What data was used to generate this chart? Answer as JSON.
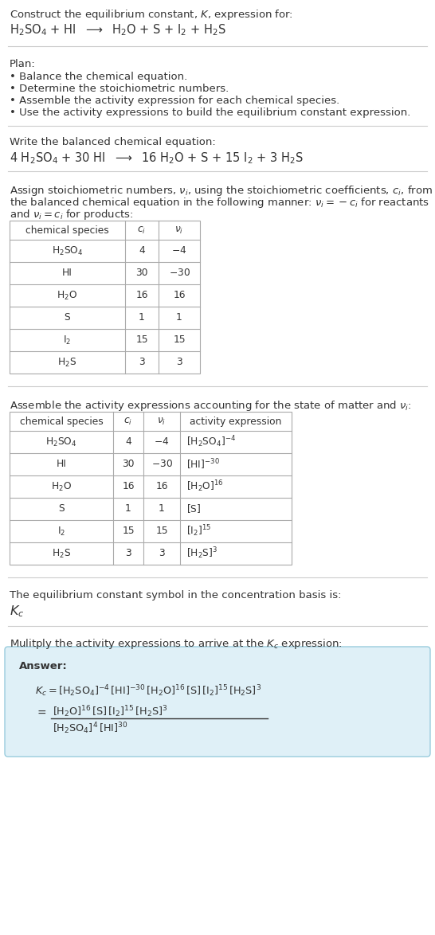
{
  "bg_color": "#ffffff",
  "text_color": "#333333",
  "gray_text": "#555555",
  "answer_bg": "#dff0f7",
  "answer_border": "#99ccdd",
  "table_border": "#aaaaaa",
  "title_line1": "Construct the equilibrium constant, $K$, expression for:",
  "title_line2": "$\\mathrm{H_2SO_4}$ + HI  $\\longrightarrow$  $\\mathrm{H_2O}$ + S + $\\mathrm{I_2}$ + $\\mathrm{H_2S}$",
  "plan_header": "Plan:",
  "plan_items": [
    "Balance the chemical equation.",
    "Determine the stoichiometric numbers.",
    "Assemble the activity expression for each chemical species.",
    "Use the activity expressions to build the equilibrium constant expression."
  ],
  "balanced_header": "Write the balanced chemical equation:",
  "balanced_eq": "4 $\\mathrm{H_2SO_4}$ + 30 HI  $\\longrightarrow$  16 $\\mathrm{H_2O}$ + S + 15 $\\mathrm{I_2}$ + 3 $\\mathrm{H_2S}$",
  "stoich_text1": "Assign stoichiometric numbers, $\\nu_i$, using the stoichiometric coefficients, $c_i$, from",
  "stoich_text2": "the balanced chemical equation in the following manner: $\\nu_i = -c_i$ for reactants",
  "stoich_text3": "and $\\nu_i = c_i$ for products:",
  "table1_cols": [
    "chemical species",
    "$c_i$",
    "$\\nu_i$"
  ],
  "table1_data": [
    [
      "$\\mathrm{H_2SO_4}$",
      "4",
      "$-4$"
    ],
    [
      "HI",
      "30",
      "$-30$"
    ],
    [
      "$\\mathrm{H_2O}$",
      "16",
      "16"
    ],
    [
      "S",
      "1",
      "1"
    ],
    [
      "$\\mathrm{I_2}$",
      "15",
      "15"
    ],
    [
      "$\\mathrm{H_2S}$",
      "3",
      "3"
    ]
  ],
  "activity_header": "Assemble the activity expressions accounting for the state of matter and $\\nu_i$:",
  "table2_cols": [
    "chemical species",
    "$c_i$",
    "$\\nu_i$",
    "activity expression"
  ],
  "table2_data": [
    [
      "$\\mathrm{H_2SO_4}$",
      "4",
      "$-4$",
      "$[\\mathrm{H_2SO_4}]^{-4}$"
    ],
    [
      "HI",
      "30",
      "$-30$",
      "$[\\mathrm{HI}]^{-30}$"
    ],
    [
      "$\\mathrm{H_2O}$",
      "16",
      "16",
      "$[\\mathrm{H_2O}]^{16}$"
    ],
    [
      "S",
      "1",
      "1",
      "$[\\mathrm{S}]$"
    ],
    [
      "$\\mathrm{I_2}$",
      "15",
      "15",
      "$[\\mathrm{I_2}]^{15}$"
    ],
    [
      "$\\mathrm{H_2S}$",
      "3",
      "3",
      "$[\\mathrm{H_2S}]^{3}$"
    ]
  ],
  "kc_header": "The equilibrium constant symbol in the concentration basis is:",
  "kc_symbol": "$K_c$",
  "multiply_header": "Mulitply the activity expressions to arrive at the $K_c$ expression:",
  "answer_label": "Answer:",
  "answer_line1": "$K_c = [\\mathrm{H_2SO_4}]^{-4}\\,[\\mathrm{HI}]^{-30}\\,[\\mathrm{H_2O}]^{16}\\,[\\mathrm{S}]\\,[\\mathrm{I_2}]^{15}\\,[\\mathrm{H_2S}]^{3}$",
  "answer_eq_num": "$[\\mathrm{H_2O}]^{16}\\,[\\mathrm{S}]\\,[\\mathrm{I_2}]^{15}\\,[\\mathrm{H_2S}]^{3}$",
  "answer_eq_den": "$[\\mathrm{H_2SO_4}]^{4}\\,[\\mathrm{HI}]^{30}$",
  "answer_equals": "$=$"
}
